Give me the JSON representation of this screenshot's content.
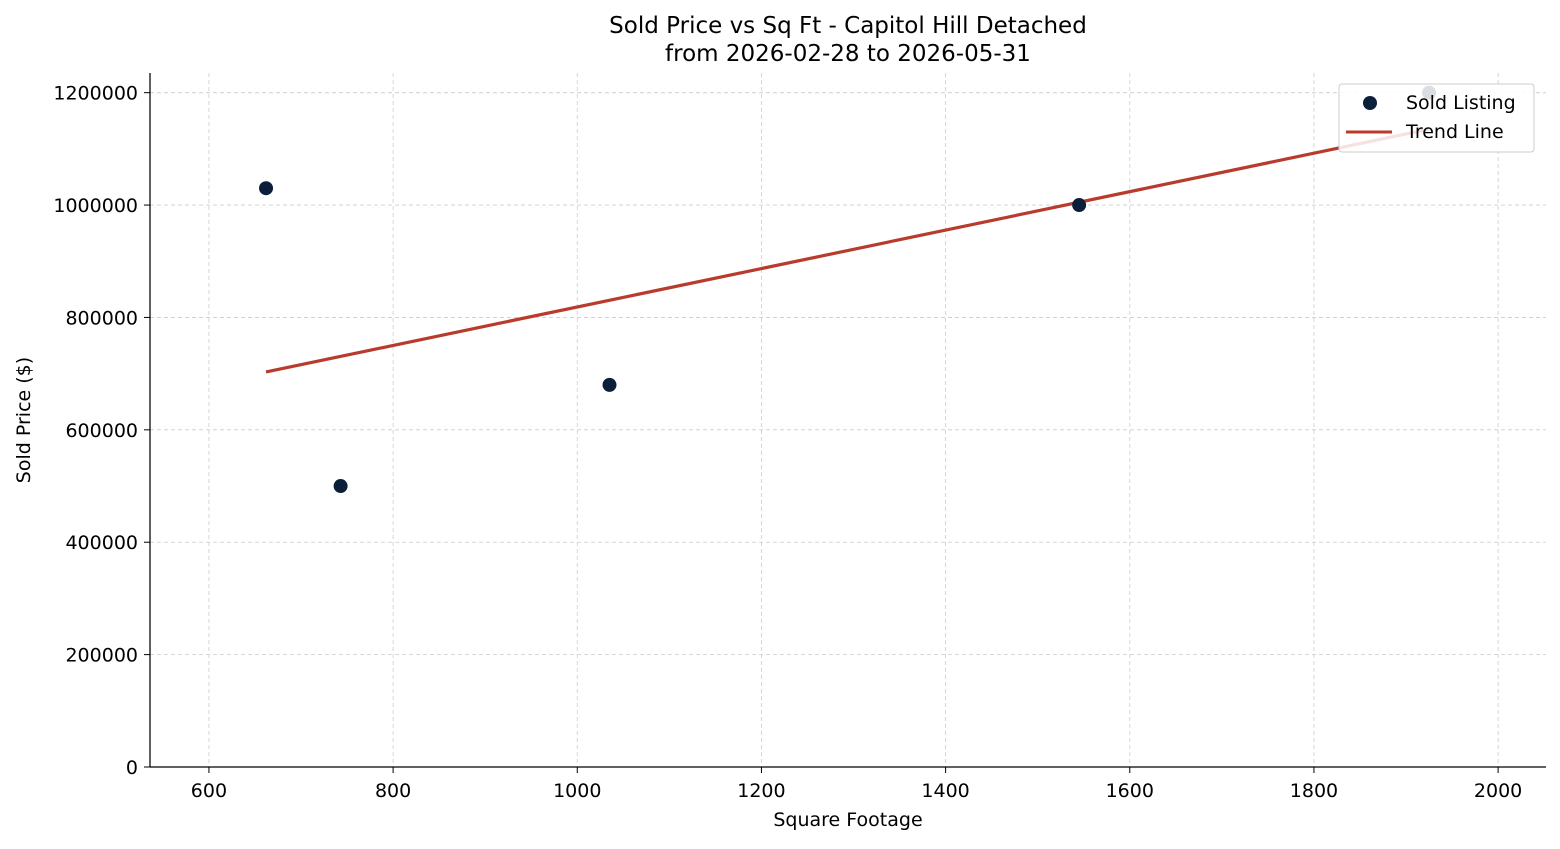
{
  "chart_data": {
    "type": "scatter",
    "title": "Sold Price vs Sq Ft - Capitol Hill Detached",
    "subtitle": "from 2026-02-28 to 2026-05-31",
    "xlabel": "Square Footage",
    "ylabel": "Sold Price ($)",
    "xlim": [
      536,
      2052
    ],
    "ylim": [
      0,
      1235000
    ],
    "xticks": [
      "600",
      "800",
      "1000",
      "1200",
      "1400",
      "1600",
      "1800",
      "2000"
    ],
    "yticks": [
      "0",
      "200000",
      "400000",
      "600000",
      "800000",
      "1000000",
      "1200000"
    ],
    "grid": true,
    "legend_position": "top-right",
    "series": [
      {
        "name": "Sold Listing",
        "kind": "scatter",
        "color": "#0b1f3a",
        "points": [
          {
            "x": 662,
            "y": 1030000
          },
          {
            "x": 743,
            "y": 500000
          },
          {
            "x": 1035,
            "y": 680000
          },
          {
            "x": 1545,
            "y": 1000000
          },
          {
            "x": 1925,
            "y": 1200000
          }
        ]
      },
      {
        "name": "Trend Line",
        "kind": "line",
        "color": "#b83b2e",
        "points": [
          {
            "x": 662,
            "y": 703000
          },
          {
            "x": 1925,
            "y": 1135000
          }
        ]
      }
    ]
  }
}
